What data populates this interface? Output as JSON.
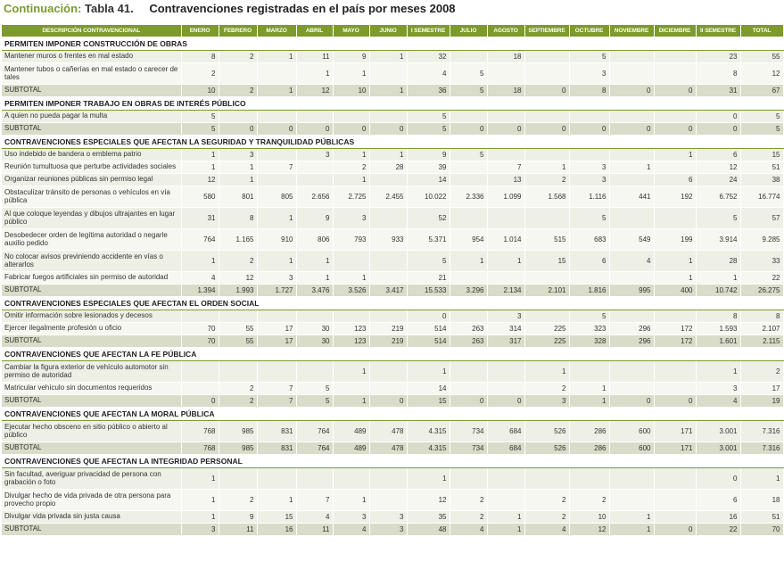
{
  "title": {
    "prefix": "Continuación:",
    "number": "Tabla 41.",
    "text": "Contravenciones registradas en el país por meses 2008"
  },
  "columns": [
    "DESCRIPCIÓN CONTRAVENCIONAL",
    "ENERO",
    "FEBRERO",
    "MARZO",
    "ABRIL",
    "MAYO",
    "JUNIO",
    "I SEMESTRE",
    "JULIO",
    "AGOSTO",
    "SEPTIEMBRE",
    "OCTUBRE",
    "NOVIEMBRE",
    "DICIEMBRE",
    "II SEMESTRE",
    "TOTAL"
  ],
  "rows": [
    {
      "type": "sec",
      "label": "PERMITEN IMPONER CONSTRUCCIÓN DE OBRAS"
    },
    {
      "type": "data",
      "label": "Mantener muros o frentes en mal estado",
      "values": [
        "8",
        "2",
        "1",
        "11",
        "9",
        "1",
        "32",
        "",
        "18",
        "",
        "5",
        "",
        "",
        "23",
        "55"
      ]
    },
    {
      "type": "data",
      "two": true,
      "label": "Mantener tubos o cañerías en mal estado o carecer de tales",
      "values": [
        "2",
        "",
        "",
        "1",
        "1",
        "",
        "4",
        "5",
        "",
        "",
        "3",
        "",
        "",
        "8",
        "12"
      ]
    },
    {
      "type": "sub",
      "label": "SUBTOTAL",
      "values": [
        "10",
        "2",
        "1",
        "12",
        "10",
        "1",
        "36",
        "5",
        "18",
        "0",
        "8",
        "0",
        "0",
        "31",
        "67"
      ]
    },
    {
      "type": "sec",
      "label": "PERMITEN IMPONER TRABAJO EN OBRAS DE INTERÉS PÚBLICO"
    },
    {
      "type": "data",
      "label": "A quien no pueda pagar la multa",
      "values": [
        "5",
        "",
        "",
        "",
        "",
        "",
        "5",
        "",
        "",
        "",
        "",
        "",
        "",
        "0",
        "5"
      ]
    },
    {
      "type": "sub",
      "label": "SUBTOTAL",
      "values": [
        "5",
        "0",
        "0",
        "0",
        "0",
        "0",
        "5",
        "0",
        "0",
        "0",
        "0",
        "0",
        "0",
        "0",
        "5"
      ]
    },
    {
      "type": "sec",
      "label": "CONTRAVENCIONES ESPECIALES QUE AFECTAN LA SEGURIDAD Y TRANQUILIDAD PÚBLICAS"
    },
    {
      "type": "data",
      "label": "Uso indebido de bandera o emblema patrio",
      "values": [
        "1",
        "3",
        "",
        "3",
        "1",
        "1",
        "9",
        "5",
        "",
        "",
        "",
        "",
        "1",
        "6",
        "15"
      ]
    },
    {
      "type": "data",
      "label": "Reunión tumultuosa que perturbe actividades sociales",
      "values": [
        "1",
        "1",
        "7",
        "",
        "2",
        "28",
        "39",
        "",
        "7",
        "1",
        "3",
        "1",
        "",
        "12",
        "51"
      ]
    },
    {
      "type": "data",
      "label": "Organizar reuniones públicas sin permiso legal",
      "values": [
        "12",
        "1",
        "",
        "",
        "1",
        "",
        "14",
        "",
        "13",
        "2",
        "3",
        "",
        "6",
        "24",
        "38"
      ]
    },
    {
      "type": "data",
      "two": true,
      "label": "Obstaculizar tránsito de personas o vehículos en vía pública",
      "values": [
        "580",
        "801",
        "805",
        "2.656",
        "2.725",
        "2.455",
        "10.022",
        "2.336",
        "1.099",
        "1.568",
        "1.116",
        "441",
        "192",
        "6.752",
        "16.774"
      ]
    },
    {
      "type": "data",
      "two": true,
      "label": "Al que coloque leyendas y dibujos ultrajantes en lugar público",
      "values": [
        "31",
        "8",
        "1",
        "9",
        "3",
        "",
        "52",
        "",
        "",
        "",
        "5",
        "",
        "",
        "5",
        "57"
      ]
    },
    {
      "type": "data",
      "two": true,
      "label": "Desobedecer orden de legítima autoridad o negarle auxilio pedido",
      "values": [
        "764",
        "1.165",
        "910",
        "806",
        "793",
        "933",
        "5.371",
        "954",
        "1.014",
        "515",
        "683",
        "549",
        "199",
        "3.914",
        "9.285"
      ]
    },
    {
      "type": "data",
      "two": true,
      "label": "No colocar avisos previniendo accidente en vías o alterarlos",
      "values": [
        "1",
        "2",
        "1",
        "1",
        "",
        "",
        "5",
        "1",
        "1",
        "15",
        "6",
        "4",
        "1",
        "28",
        "33"
      ]
    },
    {
      "type": "data",
      "label": "Fabricar fuegos artificiales sin permiso de autoridad",
      "values": [
        "4",
        "12",
        "3",
        "1",
        "1",
        "",
        "21",
        "",
        "",
        "",
        "",
        "",
        "1",
        "1",
        "22"
      ]
    },
    {
      "type": "sub",
      "label": "SUBTOTAL",
      "values": [
        "1.394",
        "1.993",
        "1.727",
        "3.476",
        "3.526",
        "3.417",
        "15.533",
        "3.296",
        "2.134",
        "2.101",
        "1.816",
        "995",
        "400",
        "10.742",
        "26.275"
      ]
    },
    {
      "type": "sec",
      "label": "CONTRAVENCIONES ESPECIALES QUE AFECTAN EL ORDEN SOCIAL"
    },
    {
      "type": "data",
      "label": "Omitir información sobre lesionados y decesos",
      "values": [
        "",
        "",
        "",
        "",
        "",
        "",
        "0",
        "",
        "3",
        "",
        "5",
        "",
        "",
        "8",
        "8"
      ]
    },
    {
      "type": "data",
      "label": "Ejercer ilegalmente profesión u oficio",
      "values": [
        "70",
        "55",
        "17",
        "30",
        "123",
        "219",
        "514",
        "263",
        "314",
        "225",
        "323",
        "296",
        "172",
        "1.593",
        "2.107"
      ]
    },
    {
      "type": "sub",
      "label": "SUBTOTAL",
      "values": [
        "70",
        "55",
        "17",
        "30",
        "123",
        "219",
        "514",
        "263",
        "317",
        "225",
        "328",
        "296",
        "172",
        "1.601",
        "2.115"
      ]
    },
    {
      "type": "sec",
      "label": "CONTRAVENCIONES QUE AFECTAN LA FE PÚBLICA"
    },
    {
      "type": "data",
      "two": true,
      "label": "Cambiar la figura exterior de vehículo automotor sin permiso de autoridad",
      "values": [
        "",
        "",
        "",
        "",
        "1",
        "",
        "1",
        "",
        "",
        "1",
        "",
        "",
        "",
        "1",
        "2"
      ]
    },
    {
      "type": "data",
      "label": "Matricular vehículo sin documentos requeridos",
      "values": [
        "",
        "2",
        "7",
        "5",
        "",
        "",
        "14",
        "",
        "",
        "2",
        "1",
        "",
        "",
        "3",
        "17"
      ]
    },
    {
      "type": "sub",
      "label": "SUBTOTAL",
      "values": [
        "0",
        "2",
        "7",
        "5",
        "1",
        "0",
        "15",
        "0",
        "0",
        "3",
        "1",
        "0",
        "0",
        "4",
        "19"
      ]
    },
    {
      "type": "sec",
      "label": "CONTRAVENCIONES QUE AFECTAN LA MORAL PÚBLICA"
    },
    {
      "type": "data",
      "two": true,
      "label": "Ejecutar hecho obsceno en sitio público o abierto al público",
      "values": [
        "768",
        "985",
        "831",
        "764",
        "489",
        "478",
        "4.315",
        "734",
        "684",
        "526",
        "286",
        "600",
        "171",
        "3.001",
        "7.316"
      ]
    },
    {
      "type": "sub",
      "label": "SUBTOTAL",
      "values": [
        "768",
        "985",
        "831",
        "764",
        "489",
        "478",
        "4.315",
        "734",
        "684",
        "526",
        "286",
        "600",
        "171",
        "3.001",
        "7.316"
      ]
    },
    {
      "type": "sec",
      "label": "CONTRAVENCIONES QUE AFECTAN LA INTEGRIDAD PERSONAL"
    },
    {
      "type": "data",
      "two": true,
      "label": "Sin facultad, averiguar privacidad de persona con grabación o foto",
      "values": [
        "1",
        "",
        "",
        "",
        "",
        "",
        "1",
        "",
        "",
        "",
        "",
        "",
        "",
        "0",
        "1"
      ]
    },
    {
      "type": "data",
      "two": true,
      "label": "Divulgar hecho de vida privada de otra persona para provecho propio",
      "values": [
        "1",
        "2",
        "1",
        "7",
        "1",
        "",
        "12",
        "2",
        "",
        "2",
        "2",
        "",
        "",
        "6",
        "18"
      ]
    },
    {
      "type": "data",
      "label": "Divulgar vida privada sin justa causa",
      "values": [
        "1",
        "9",
        "15",
        "4",
        "3",
        "3",
        "35",
        "2",
        "1",
        "2",
        "10",
        "1",
        "",
        "16",
        "51"
      ]
    },
    {
      "type": "sub",
      "label": "SUBTOTAL",
      "values": [
        "3",
        "11",
        "16",
        "11",
        "4",
        "3",
        "48",
        "4",
        "1",
        "4",
        "12",
        "1",
        "0",
        "22",
        "70"
      ]
    }
  ]
}
